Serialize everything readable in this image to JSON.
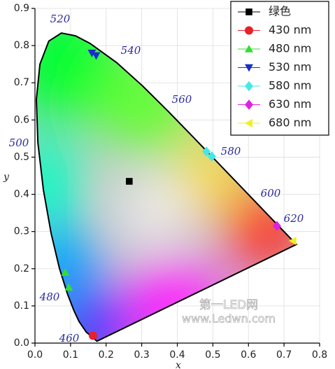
{
  "chart_data": {
    "type": "scatter",
    "x_label": "x",
    "y_label": "y",
    "xlim": [
      0,
      0.8
    ],
    "ylim": [
      0,
      0.9
    ],
    "xticks": [
      {
        "value": 0,
        "label": "0.0"
      },
      0.1,
      0.2,
      0.3,
      0.4,
      0.5,
      0.6,
      0.7,
      0.8
    ],
    "yticks": [
      {
        "value": 0,
        "label": "0.0"
      },
      0.1,
      0.2,
      0.3,
      0.4,
      0.5,
      0.6,
      0.7,
      0.8,
      0.9
    ],
    "grid": true,
    "legend": "upper right",
    "spectral_locus": {
      "labels": [
        "460",
        "480",
        "500",
        "520",
        "540",
        "560",
        "580",
        "600",
        "620"
      ],
      "x": [
        0.1741,
        0.144,
        0.1241,
        0.1096,
        0.0913,
        0.0687,
        0.0454,
        0.0235,
        0.0082,
        0.0039,
        0.0139,
        0.0389,
        0.0743,
        0.1142,
        0.1547,
        0.2296,
        0.3016,
        0.3731,
        0.4441,
        0.5125,
        0.5752,
        0.627,
        0.6915,
        0.719,
        0.7347
      ],
      "y": [
        0.005,
        0.0297,
        0.0578,
        0.0868,
        0.1327,
        0.2007,
        0.295,
        0.4127,
        0.5384,
        0.6548,
        0.7502,
        0.812,
        0.8338,
        0.8262,
        0.8059,
        0.7543,
        0.6923,
        0.6245,
        0.5547,
        0.4866,
        0.4242,
        0.3725,
        0.3083,
        0.2809,
        0.2653
      ]
    },
    "series": [
      {
        "name": "绿色",
        "color": "#000000",
        "marker": "square",
        "x": [
          0.265
        ],
        "y": [
          0.435
        ]
      },
      {
        "name": "430 nm",
        "color": "#e8202a",
        "marker": "circle",
        "x": [
          0.163
        ],
        "y": [
          0.02
        ]
      },
      {
        "name": "480 nm",
        "color": "#33dd33",
        "marker": "triangle-up",
        "x": [
          0.085,
          0.095
        ],
        "y": [
          0.19,
          0.15
        ]
      },
      {
        "name": "530 nm",
        "color": "#1530c8",
        "marker": "triangle-down",
        "x": [
          0.16,
          0.172
        ],
        "y": [
          0.78,
          0.773
        ]
      },
      {
        "name": "580 nm",
        "color": "#44e8e8",
        "marker": "diamond",
        "x": [
          0.482,
          0.497
        ],
        "y": [
          0.515,
          0.502
        ]
      },
      {
        "name": "630 nm",
        "color": "#e020e0",
        "marker": "diamond",
        "x": [
          0.68
        ],
        "y": [
          0.315
        ]
      },
      {
        "name": "680 nm",
        "color": "#f0f020",
        "marker": "triangle-left",
        "x": [
          0.725
        ],
        "y": [
          0.275
        ]
      }
    ],
    "watermark": [
      "第一LED网",
      "www.Ledwn.com"
    ]
  }
}
